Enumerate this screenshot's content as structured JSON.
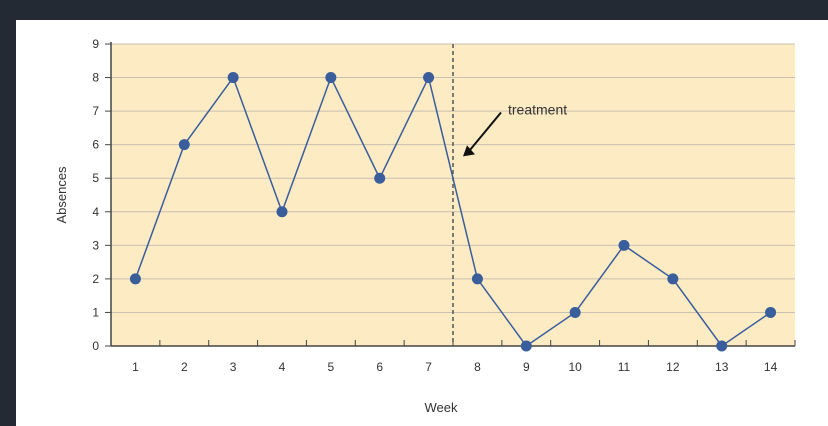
{
  "chart_data": {
    "type": "line",
    "xlabel": "Week",
    "ylabel": "Absences",
    "x": [
      1,
      2,
      3,
      4,
      5,
      6,
      7,
      8,
      9,
      10,
      11,
      12,
      13,
      14
    ],
    "y": [
      2,
      6,
      8,
      4,
      8,
      5,
      8,
      2,
      0,
      1,
      3,
      2,
      0,
      1
    ],
    "xlim": [
      0.5,
      14.5
    ],
    "ylim": [
      0,
      9
    ],
    "yticks": [
      0,
      1,
      2,
      3,
      4,
      5,
      6,
      7,
      8,
      9
    ],
    "xticks": [
      1,
      2,
      3,
      4,
      5,
      6,
      7,
      8,
      9,
      10,
      11,
      12,
      13,
      14
    ],
    "grid": "horizontal",
    "annotation": {
      "text": "treatment",
      "x": 7.5
    },
    "colors": {
      "plot_background": "#fdebc4",
      "line": "#3a5d9c",
      "marker": "#3a5d9c",
      "grid": "#c8c0b0",
      "treatment_line": "#555555",
      "page_background": "#242a33"
    }
  }
}
